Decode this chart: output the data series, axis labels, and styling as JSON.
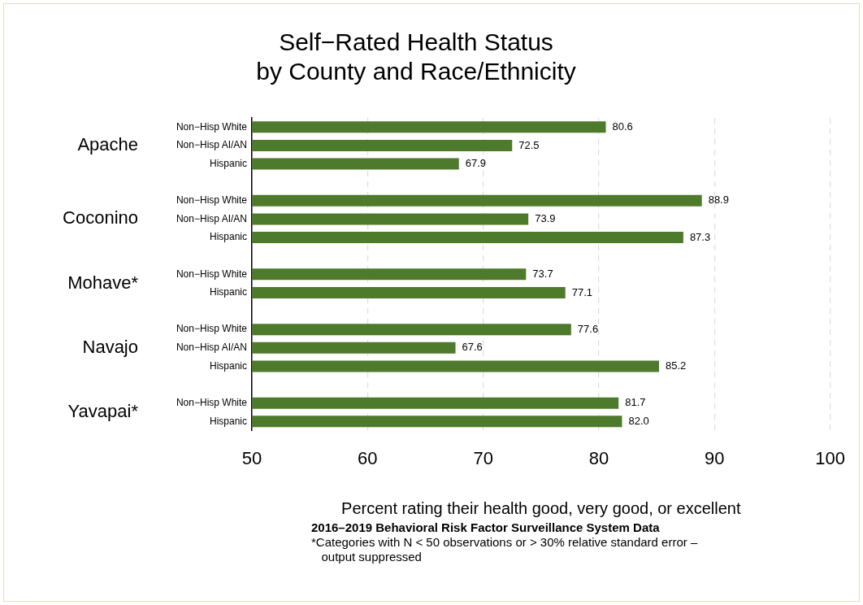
{
  "chart_data": {
    "type": "bar",
    "orientation": "horizontal",
    "title": "Self−Rated Health Status\nby County and Race/Ethnicity",
    "xlabel": "Percent rating their health good, very good, or excellent",
    "categories": [
      "Non−Hisp White",
      "Non−Hisp AI/AN",
      "Hispanic",
      null,
      "Non−Hisp White",
      "Non−Hisp AI/AN",
      "Hispanic",
      null,
      "Non−Hisp White",
      "Hispanic",
      null,
      "Non−Hisp White",
      "Non−Hisp AI/AN",
      "Hispanic",
      null,
      "Non−Hisp White",
      "Hispanic"
    ],
    "values": [
      80.6,
      72.5,
      67.9,
      null,
      88.9,
      73.9,
      87.3,
      null,
      73.7,
      77.1,
      null,
      77.6,
      67.6,
      85.2,
      null,
      81.7,
      82.0
    ],
    "value_labels": [
      "80.6",
      "72.5",
      "67.9",
      null,
      "88.9",
      "73.9",
      "87.3",
      null,
      "73.7",
      "77.1",
      null,
      "77.6",
      "67.6",
      "85.2",
      null,
      "81.7",
      "82.0"
    ],
    "color": "#4e7a2c",
    "xlim": [
      50,
      100
    ],
    "xticks": [
      50,
      60,
      70,
      80,
      90,
      100
    ],
    "grid": "x",
    "legend": false,
    "annotations": [
      "Apache",
      "Coconino",
      "Mohave*",
      "Navajo",
      "Yavapai*",
      "2016–2019 Behavioral Risk Factor Surveillance System Data",
      "*Categories with N < 50 observations or > 30% relative standard error –\n   output suppressed"
    ]
  }
}
